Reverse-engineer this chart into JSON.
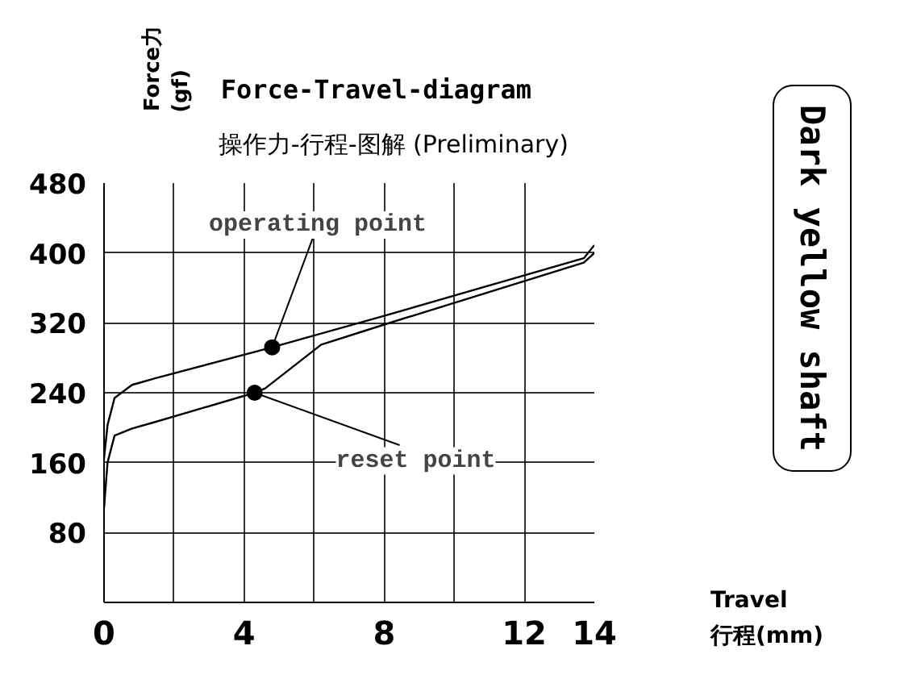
{
  "chart_data": {
    "type": "line",
    "title": "Force-Travel-diagram",
    "subtitle": "操作力-行程-图解 (Preliminary)",
    "xlabel": "Travel\n行程(mm)",
    "ylabel": "Force力\n(gf)",
    "annotations": [
      {
        "text": "operating point",
        "x": 4.8,
        "y": 292
      },
      {
        "text": "reset point",
        "x": 4.3,
        "y": 240
      },
      "Dark yellow shaft"
    ],
    "series": [
      {
        "color": "#000000",
        "x": [
          0,
          0.1,
          0.3,
          0.8,
          1.5,
          4.8,
          8,
          13.7,
          14
        ],
        "values": [
          165,
          203,
          234,
          249,
          257,
          292,
          328,
          394,
          409
        ]
      },
      {
        "color": "#000000",
        "x": [
          0,
          0.1,
          0.3,
          0.8,
          1.5,
          4.3,
          4.6,
          6.2,
          8,
          13.7,
          14
        ],
        "values": [
          108,
          160,
          191,
          199,
          207,
          240,
          245,
          295,
          318,
          389,
          400
        ]
      }
    ],
    "xlim": [
      0,
      14
    ],
    "ylim": [
      0,
      480
    ],
    "xticks": [
      0,
      {
        "value": 2,
        "label": null
      },
      4,
      {
        "value": 6,
        "label": null
      },
      8,
      {
        "value": 10,
        "label": null
      },
      12,
      14
    ],
    "yticks": [
      80,
      160,
      240,
      320,
      400,
      480
    ],
    "grid": true
  }
}
